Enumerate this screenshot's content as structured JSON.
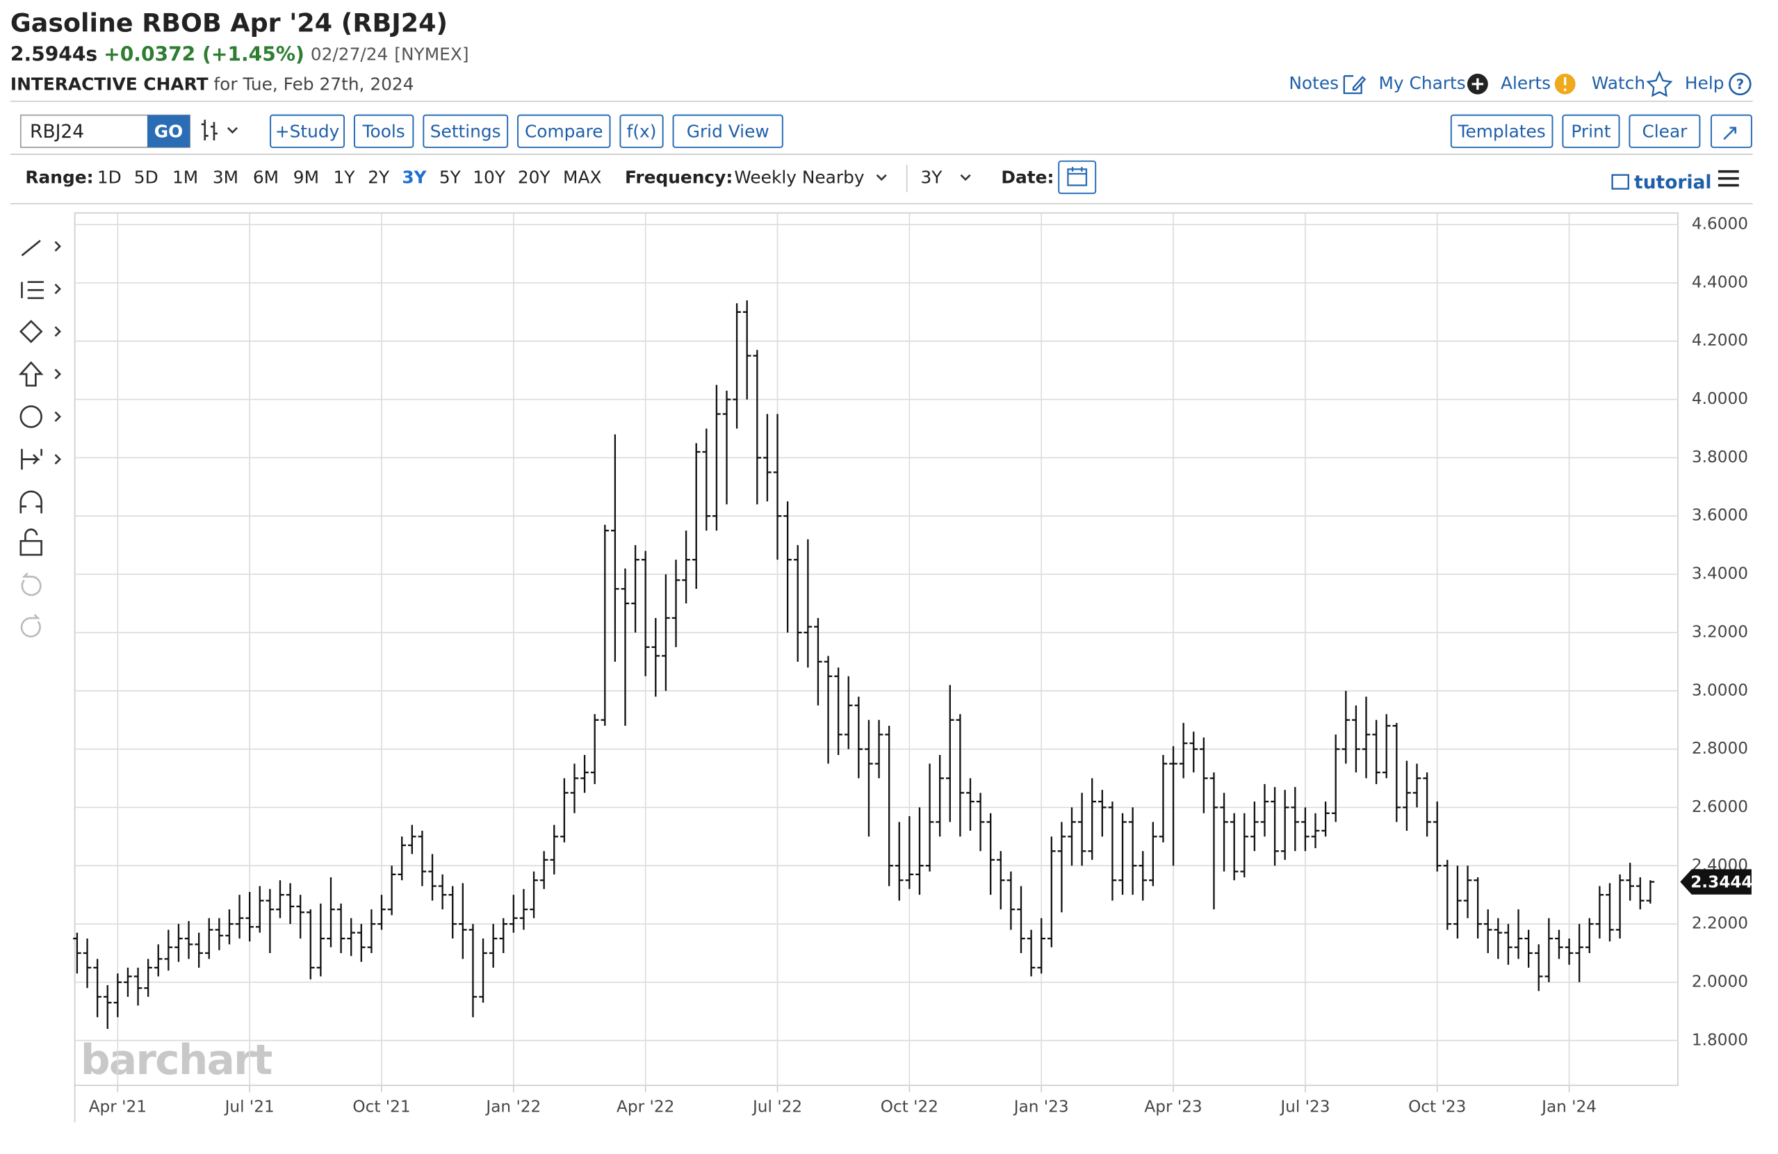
{
  "header": {
    "title": "Gasoline RBOB Apr '24 (RBJ24)",
    "last": "2.5944s",
    "change": "+0.0372 (+1.45%)",
    "date": "02/27/24",
    "exchange": "[NYMEX]",
    "chart_label": "INTERACTIVE CHART",
    "for_text": "for Tue, Feb 27th, 2024"
  },
  "nav": [
    "Notes",
    "My Charts",
    "Alerts",
    "Watch",
    "Help"
  ],
  "toolbar": {
    "symbol": "RBJ24",
    "go": "GO",
    "buttons": [
      "+Study",
      "Tools",
      "Settings",
      "Compare",
      "f(x)",
      "Grid View"
    ],
    "right_buttons": [
      "Templates",
      "Print",
      "Clear"
    ]
  },
  "range_bar": {
    "label": "Range:",
    "ranges": [
      "1D",
      "5D",
      "1M",
      "3M",
      "6M",
      "9M",
      "1Y",
      "2Y",
      "3Y",
      "5Y",
      "10Y",
      "20Y",
      "MAX"
    ],
    "active_range_index": 8,
    "frequency_label": "Frequency:",
    "frequency": "Weekly Nearby",
    "period": "3Y",
    "date_label": "Date:",
    "tutorial": "tutorial"
  },
  "watermark": "barchart",
  "chart_data": {
    "type": "ohlc",
    "color": "#111111",
    "grid": true,
    "categories": [
      null,
      null,
      null,
      null,
      "Apr '21",
      null,
      null,
      null,
      null,
      null,
      null,
      null,
      null,
      null,
      null,
      null,
      null,
      "Jul '21",
      null,
      null,
      null,
      null,
      null,
      null,
      null,
      null,
      null,
      null,
      null,
      null,
      "Oct '21",
      null,
      null,
      null,
      null,
      null,
      null,
      null,
      null,
      null,
      null,
      null,
      null,
      "Jan '22",
      null,
      null,
      null,
      null,
      null,
      null,
      null,
      null,
      null,
      null,
      null,
      null,
      "Apr '22",
      null,
      null,
      null,
      null,
      null,
      null,
      null,
      null,
      null,
      null,
      null,
      null,
      "Jul '22",
      null,
      null,
      null,
      null,
      null,
      null,
      null,
      null,
      null,
      null,
      null,
      null,
      "Oct '22",
      null,
      null,
      null,
      null,
      null,
      null,
      null,
      null,
      null,
      null,
      null,
      null,
      "Jan '23",
      null,
      null,
      null,
      null,
      null,
      null,
      null,
      null,
      null,
      null,
      null,
      null,
      "Apr '23",
      null,
      null,
      null,
      null,
      null,
      null,
      null,
      null,
      null,
      null,
      null,
      null,
      "Jul '23",
      null,
      null,
      null,
      null,
      null,
      null,
      null,
      null,
      null,
      null,
      null,
      null,
      "Oct '23",
      null,
      null,
      null,
      null,
      null,
      null,
      null,
      null,
      null,
      null,
      null,
      null,
      "Jan '24",
      null,
      null,
      null,
      null,
      null,
      null,
      null,
      null
    ],
    "open": [
      2.15,
      2.1,
      2.05,
      1.95,
      1.93,
      2.0,
      2.02,
      1.98,
      2.05,
      2.08,
      2.12,
      2.15,
      2.13,
      2.1,
      2.18,
      2.16,
      2.2,
      2.22,
      2.19,
      2.28,
      2.25,
      2.3,
      2.26,
      2.24,
      2.05,
      2.15,
      2.25,
      2.15,
      2.17,
      2.12,
      2.2,
      2.25,
      2.37,
      2.47,
      2.5,
      2.38,
      2.33,
      2.3,
      2.2,
      2.18,
      1.95,
      2.1,
      2.15,
      2.2,
      2.22,
      2.25,
      2.35,
      2.42,
      2.5,
      2.65,
      2.7,
      2.72,
      2.9,
      3.55,
      3.35,
      3.3,
      3.45,
      3.15,
      3.12,
      3.25,
      3.38,
      3.45,
      3.82,
      3.6,
      3.95,
      4.0,
      4.3,
      4.15,
      3.8,
      3.75,
      3.6,
      3.45,
      3.2,
      3.22,
      3.1,
      3.05,
      2.85,
      2.95,
      2.8,
      2.75,
      2.85,
      2.4,
      2.35,
      2.37,
      2.4,
      2.55,
      2.7,
      2.9,
      2.65,
      2.62,
      2.55,
      2.42,
      2.35,
      2.25,
      2.15,
      2.05,
      2.15,
      2.45,
      2.5,
      2.55,
      2.45,
      2.62,
      2.6,
      2.35,
      2.55,
      2.4,
      2.35,
      2.5,
      2.75,
      2.75,
      2.82,
      2.8,
      2.7,
      2.6,
      2.55,
      2.38,
      2.5,
      2.55,
      2.62,
      2.45,
      2.6,
      2.55,
      2.5,
      2.52,
      2.58,
      2.8,
      2.9,
      2.8,
      2.85,
      2.72,
      2.88,
      2.6,
      2.65,
      2.7,
      2.55,
      2.4,
      2.2,
      2.28,
      2.35,
      2.2,
      2.18,
      2.17,
      2.12,
      2.15,
      2.1,
      2.02,
      2.15,
      2.12,
      2.1,
      2.12,
      2.2,
      2.3,
      2.18,
      2.35,
      2.33,
      2.28
    ],
    "high": [
      2.17,
      2.15,
      2.08,
      1.99,
      2.03,
      2.05,
      2.05,
      2.08,
      2.13,
      2.18,
      2.2,
      2.21,
      2.17,
      2.22,
      2.22,
      2.25,
      2.3,
      2.31,
      2.33,
      2.32,
      2.35,
      2.34,
      2.3,
      2.25,
      2.27,
      2.36,
      2.27,
      2.22,
      2.2,
      2.25,
      2.3,
      2.4,
      2.5,
      2.54,
      2.52,
      2.44,
      2.37,
      2.33,
      2.34,
      2.2,
      2.15,
      2.2,
      2.22,
      2.3,
      2.32,
      2.38,
      2.45,
      2.54,
      2.7,
      2.75,
      2.78,
      2.92,
      3.57,
      3.88,
      3.42,
      3.5,
      3.48,
      3.25,
      3.4,
      3.45,
      3.55,
      3.85,
      3.9,
      4.05,
      4.03,
      4.33,
      4.34,
      4.17,
      3.95,
      3.95,
      3.65,
      3.5,
      3.52,
      3.25,
      3.12,
      3.08,
      3.05,
      2.98,
      2.9,
      2.9,
      2.88,
      2.55,
      2.57,
      2.6,
      2.75,
      2.78,
      3.02,
      2.92,
      2.7,
      2.65,
      2.58,
      2.45,
      2.38,
      2.33,
      2.18,
      2.22,
      2.5,
      2.55,
      2.6,
      2.65,
      2.7,
      2.66,
      2.62,
      2.58,
      2.6,
      2.45,
      2.55,
      2.78,
      2.81,
      2.89,
      2.86,
      2.84,
      2.72,
      2.65,
      2.58,
      2.58,
      2.62,
      2.68,
      2.67,
      2.66,
      2.67,
      2.6,
      2.58,
      2.62,
      2.85,
      3.0,
      2.95,
      2.98,
      2.9,
      2.92,
      2.89,
      2.76,
      2.75,
      2.72,
      2.62,
      2.42,
      2.4,
      2.4,
      2.36,
      2.25,
      2.22,
      2.2,
      2.25,
      2.18,
      2.13,
      2.22,
      2.18,
      2.15,
      2.2,
      2.22,
      2.33,
      2.34,
      2.37,
      2.41,
      2.36,
      2.35
    ],
    "low": [
      2.03,
      1.98,
      1.88,
      1.84,
      1.88,
      1.95,
      1.92,
      1.95,
      2.02,
      2.04,
      2.07,
      2.08,
      2.05,
      2.08,
      2.11,
      2.13,
      2.15,
      2.14,
      2.17,
      2.1,
      2.22,
      2.2,
      2.15,
      2.01,
      2.02,
      2.12,
      2.1,
      2.09,
      2.07,
      2.1,
      2.18,
      2.23,
      2.35,
      2.44,
      2.33,
      2.28,
      2.25,
      2.15,
      2.08,
      1.88,
      1.93,
      2.05,
      2.1,
      2.17,
      2.18,
      2.22,
      2.32,
      2.37,
      2.48,
      2.58,
      2.65,
      2.68,
      2.88,
      3.1,
      2.88,
      3.2,
      3.05,
      2.98,
      3.0,
      3.15,
      3.3,
      3.35,
      3.55,
      3.55,
      3.64,
      3.9,
      4.0,
      3.64,
      3.65,
      3.45,
      3.2,
      3.1,
      3.08,
      2.95,
      2.75,
      2.78,
      2.8,
      2.7,
      2.5,
      2.7,
      2.33,
      2.28,
      2.32,
      2.3,
      2.38,
      2.5,
      2.55,
      2.5,
      2.52,
      2.45,
      2.3,
      2.25,
      2.18,
      2.1,
      2.02,
      2.03,
      2.12,
      2.24,
      2.4,
      2.4,
      2.42,
      2.5,
      2.28,
      2.3,
      2.3,
      2.28,
      2.33,
      2.48,
      2.4,
      2.7,
      2.72,
      2.58,
      2.25,
      2.38,
      2.35,
      2.36,
      2.45,
      2.5,
      2.4,
      2.42,
      2.45,
      2.45,
      2.46,
      2.5,
      2.55,
      2.75,
      2.72,
      2.7,
      2.68,
      2.7,
      2.55,
      2.52,
      2.6,
      2.5,
      2.38,
      2.18,
      2.15,
      2.22,
      2.15,
      2.1,
      2.08,
      2.06,
      2.08,
      2.05,
      1.97,
      2.0,
      2.08,
      2.06,
      2.0,
      2.1,
      2.15,
      2.14,
      2.15,
      2.28,
      2.25,
      2.27
    ],
    "close": [
      2.1,
      2.05,
      1.95,
      1.93,
      2.0,
      2.02,
      1.98,
      2.05,
      2.08,
      2.12,
      2.15,
      2.13,
      2.1,
      2.18,
      2.16,
      2.2,
      2.22,
      2.19,
      2.28,
      2.25,
      2.3,
      2.26,
      2.24,
      2.05,
      2.15,
      2.25,
      2.15,
      2.17,
      2.12,
      2.2,
      2.25,
      2.37,
      2.47,
      2.5,
      2.38,
      2.33,
      2.3,
      2.2,
      2.18,
      1.95,
      2.1,
      2.15,
      2.2,
      2.22,
      2.25,
      2.35,
      2.42,
      2.5,
      2.65,
      2.7,
      2.72,
      2.9,
      3.55,
      3.35,
      3.3,
      3.45,
      3.15,
      3.12,
      3.25,
      3.38,
      3.45,
      3.82,
      3.6,
      3.95,
      4.0,
      4.3,
      4.15,
      3.8,
      3.75,
      3.6,
      3.45,
      3.2,
      3.22,
      3.1,
      3.05,
      2.85,
      2.95,
      2.8,
      2.75,
      2.85,
      2.4,
      2.35,
      2.37,
      2.4,
      2.55,
      2.7,
      2.9,
      2.65,
      2.62,
      2.55,
      2.42,
      2.35,
      2.25,
      2.15,
      2.05,
      2.15,
      2.45,
      2.5,
      2.55,
      2.45,
      2.62,
      2.6,
      2.35,
      2.55,
      2.4,
      2.35,
      2.5,
      2.75,
      2.75,
      2.82,
      2.8,
      2.7,
      2.6,
      2.55,
      2.38,
      2.5,
      2.55,
      2.62,
      2.45,
      2.6,
      2.55,
      2.5,
      2.52,
      2.58,
      2.8,
      2.9,
      2.8,
      2.85,
      2.72,
      2.88,
      2.6,
      2.65,
      2.7,
      2.55,
      2.4,
      2.2,
      2.28,
      2.35,
      2.2,
      2.18,
      2.17,
      2.12,
      2.15,
      2.1,
      2.02,
      2.15,
      2.12,
      2.1,
      2.12,
      2.2,
      2.3,
      2.18,
      2.35,
      2.33,
      2.28,
      2.3444
    ],
    "last_label": "2.3444",
    "ylim": [
      1.646,
      4.64
    ],
    "yticks": [
      {
        "value": 1.8,
        "label": "1.8000"
      },
      {
        "value": 2.0,
        "label": "2.0000"
      },
      {
        "value": 2.2,
        "label": "2.2000"
      },
      {
        "value": 2.4,
        "label": "2.4000"
      },
      {
        "value": 2.6,
        "label": "2.6000"
      },
      {
        "value": 2.8,
        "label": "2.8000"
      },
      {
        "value": 3.0,
        "label": "3.0000"
      },
      {
        "value": 3.2,
        "label": "3.2000"
      },
      {
        "value": 3.4,
        "label": "3.4000"
      },
      {
        "value": 3.6,
        "label": "3.6000"
      },
      {
        "value": 3.8,
        "label": "3.8000"
      },
      {
        "value": 4.0,
        "label": "4.0000"
      },
      {
        "value": 4.2,
        "label": "4.2000"
      },
      {
        "value": 4.4,
        "label": "4.4000"
      },
      {
        "value": 4.6,
        "label": "4.6000"
      }
    ]
  }
}
